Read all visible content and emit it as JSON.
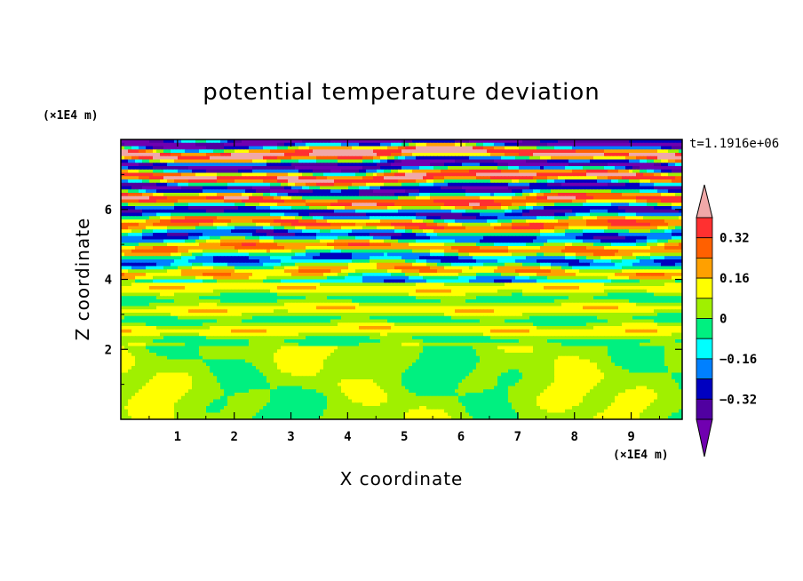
{
  "chart_data": {
    "type": "heatmap",
    "title": "potential temperature deviation",
    "xlabel": "X coordinate",
    "ylabel": "Z coordinate",
    "x_unit": "(×1E4 m)",
    "y_unit": "(×1E4 m)",
    "timestamp": "t=1.1916e+06",
    "xlim": [
      0,
      9.9
    ],
    "ylim": [
      0,
      8
    ],
    "x_ticks": [
      "1",
      "2",
      "3",
      "4",
      "5",
      "6",
      "7",
      "8",
      "9"
    ],
    "y_ticks": [
      "2",
      "4",
      "6"
    ],
    "grid": false,
    "legend": "right",
    "colorbar": {
      "level_step": 0.08,
      "levels": [
        -0.4,
        -0.32,
        -0.24,
        -0.16,
        -0.08,
        0,
        0.08,
        0.16,
        0.24,
        0.32,
        0.4
      ],
      "labels": [
        "0.32",
        "0.16",
        "0",
        "−0.16",
        "−0.32"
      ],
      "label_values": [
        0.32,
        0.16,
        0,
        -0.16,
        -0.32
      ],
      "colors_high_to_low": [
        "#f0a8a8",
        "#ff3030",
        "#ff6000",
        "#ffa000",
        "#ffff00",
        "#a0f000",
        "#00f080",
        "#00ffff",
        "#0080ff",
        "#0000c0",
        "#5000a0",
        "#7000b0"
      ],
      "extend": "both"
    }
  }
}
